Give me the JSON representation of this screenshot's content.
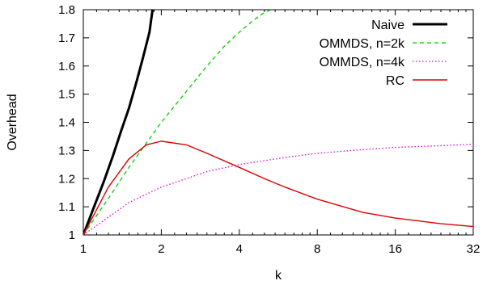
{
  "chart_data": {
    "type": "line",
    "title": "",
    "xlabel": "k",
    "ylabel": "Overhead",
    "x_scale": "log2",
    "xlim": [
      1,
      32
    ],
    "ylim": [
      1.0,
      1.8
    ],
    "grid": false,
    "legend_position": "top-right",
    "x_ticks": [
      {
        "value": 1,
        "label": "1"
      },
      {
        "value": 2,
        "label": "2"
      },
      {
        "value": 4,
        "label": "4"
      },
      {
        "value": 8,
        "label": "8"
      },
      {
        "value": 16,
        "label": "16"
      },
      {
        "value": 32,
        "label": "32"
      }
    ],
    "y_ticks": [
      {
        "value": 1.0,
        "label": "1"
      },
      {
        "value": 1.1,
        "label": "1.1"
      },
      {
        "value": 1.2,
        "label": "1.2"
      },
      {
        "value": 1.3,
        "label": "1.3"
      },
      {
        "value": 1.4,
        "label": "1.4"
      },
      {
        "value": 1.5,
        "label": "1.5"
      },
      {
        "value": 1.6,
        "label": "1.6"
      },
      {
        "value": 1.7,
        "label": "1.7"
      },
      {
        "value": 1.8,
        "label": "1.8"
      }
    ],
    "series": [
      {
        "name": "Naive",
        "color": "#000000",
        "style": "solid-thick",
        "x": [
          1.0,
          1.1,
          1.2,
          1.3,
          1.4,
          1.5,
          1.6,
          1.7,
          1.8,
          1.85
        ],
        "y": [
          1.0,
          1.1,
          1.19,
          1.28,
          1.37,
          1.45,
          1.54,
          1.63,
          1.72,
          1.8
        ]
      },
      {
        "name": "OMMDS, n=2k",
        "color": "#00cc00",
        "style": "dashed",
        "x": [
          1.0,
          1.25,
          1.5,
          2.0,
          2.5,
          3.0,
          3.5,
          4.0,
          4.5,
          5.0,
          5.3
        ],
        "y": [
          1.0,
          1.13,
          1.24,
          1.4,
          1.51,
          1.6,
          1.67,
          1.72,
          1.76,
          1.79,
          1.8
        ]
      },
      {
        "name": "OMMDS, n=4k",
        "color": "#dd00dd",
        "style": "dotted",
        "x": [
          1,
          1.5,
          2,
          3,
          4,
          6,
          8,
          12,
          16,
          24,
          32
        ],
        "y": [
          1.0,
          1.115,
          1.17,
          1.225,
          1.25,
          1.275,
          1.29,
          1.303,
          1.311,
          1.317,
          1.322
        ]
      },
      {
        "name": "RC",
        "color": "#dd0000",
        "style": "solid",
        "x": [
          1,
          1.25,
          1.5,
          1.75,
          2,
          2.5,
          3,
          4,
          5,
          6,
          8,
          12,
          16,
          24,
          32
        ],
        "y": [
          1.0,
          1.17,
          1.27,
          1.32,
          1.333,
          1.32,
          1.29,
          1.24,
          1.2,
          1.17,
          1.127,
          1.08,
          1.06,
          1.04,
          1.03
        ]
      }
    ]
  }
}
